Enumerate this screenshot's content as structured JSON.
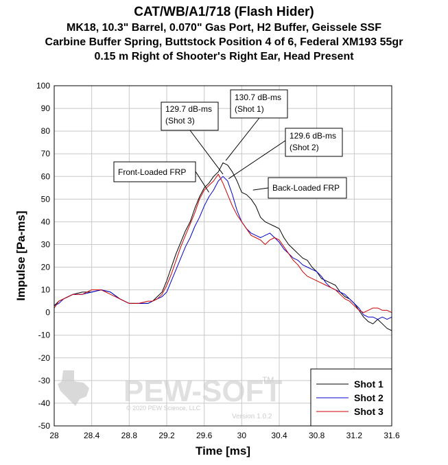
{
  "chart_data": {
    "type": "line",
    "title": "CAT/WB/A1/718 (Flash Hider)",
    "subtitle_lines": [
      "MK18, 10.3\" Barrel, 0.070\" Gas Port, H2 Buffer, Geissele SSF",
      "Carbine Buffer Spring, Buttstock Position 4 of 6, Federal XM193 55gr",
      "0.15 m Right of Shooter's Right Ear, Head Present"
    ],
    "xlabel": "Time [ms]",
    "ylabel": "Impulse [Pa-ms]",
    "xlim": [
      28,
      31.6
    ],
    "ylim": [
      -50,
      100
    ],
    "xticks": [
      "28",
      "28.4",
      "28.8",
      "29.2",
      "29.6",
      "30",
      "30.4",
      "30.8",
      "31.2",
      "31.6"
    ],
    "yticks": [
      "100",
      "90",
      "80",
      "70",
      "60",
      "50",
      "40",
      "30",
      "20",
      "10",
      "0",
      "-10",
      "-20",
      "-30",
      "-40",
      "-50"
    ],
    "grid": true,
    "legend_position": "bottom-right",
    "series": [
      {
        "name": "Shot 1",
        "color": "#000000",
        "x": [
          28.0,
          28.05,
          28.1,
          28.15,
          28.2,
          28.3,
          28.4,
          28.5,
          28.6,
          28.7,
          28.8,
          28.9,
          29.0,
          29.05,
          29.1,
          29.15,
          29.2,
          29.25,
          29.3,
          29.35,
          29.4,
          29.45,
          29.5,
          29.55,
          29.6,
          29.65,
          29.7,
          29.75,
          29.8,
          29.85,
          29.9,
          29.95,
          30.0,
          30.05,
          30.1,
          30.15,
          30.2,
          30.25,
          30.3,
          30.35,
          30.4,
          30.45,
          30.5,
          30.55,
          30.6,
          30.65,
          30.7,
          30.75,
          30.8,
          30.85,
          30.9,
          30.95,
          31.0,
          31.05,
          31.1,
          31.15,
          31.2,
          31.25,
          31.3,
          31.35,
          31.4,
          31.45,
          31.5,
          31.55,
          31.6
        ],
        "values": [
          3,
          5,
          6,
          7,
          8,
          9,
          9,
          10,
          9,
          6,
          4,
          4,
          4,
          5,
          7,
          9,
          14,
          20,
          26,
          31,
          36,
          40,
          46,
          51,
          55,
          57,
          60,
          62,
          66,
          65,
          62,
          58,
          53,
          52,
          50,
          47,
          42,
          40,
          39,
          38,
          37,
          33,
          30,
          28,
          26,
          24,
          23,
          20,
          18,
          15,
          14,
          13,
          12,
          9,
          7,
          6,
          4,
          1,
          -2,
          -4,
          -5,
          -3,
          -5,
          -7,
          -8
        ]
      },
      {
        "name": "Shot 2",
        "color": "#0000cc",
        "x": [
          28.0,
          28.05,
          28.1,
          28.15,
          28.2,
          28.3,
          28.4,
          28.5,
          28.6,
          28.7,
          28.8,
          28.9,
          29.0,
          29.05,
          29.1,
          29.15,
          29.2,
          29.25,
          29.3,
          29.35,
          29.4,
          29.45,
          29.5,
          29.55,
          29.6,
          29.65,
          29.7,
          29.75,
          29.8,
          29.85,
          29.9,
          29.95,
          30.0,
          30.05,
          30.1,
          30.15,
          30.2,
          30.25,
          30.3,
          30.35,
          30.4,
          30.45,
          30.5,
          30.55,
          30.6,
          30.65,
          30.7,
          30.75,
          30.8,
          30.85,
          30.9,
          30.95,
          31.0,
          31.05,
          31.1,
          31.15,
          31.2,
          31.25,
          31.3,
          31.35,
          31.4,
          31.45,
          31.5,
          31.55,
          31.6
        ],
        "values": [
          3,
          4,
          6,
          7,
          8,
          8,
          9,
          10,
          9,
          6,
          4,
          4,
          4,
          5,
          6,
          7,
          9,
          14,
          19,
          24,
          29,
          33,
          38,
          42,
          47,
          51,
          54,
          58,
          60,
          58,
          52,
          45,
          40,
          37,
          35,
          34,
          33,
          34,
          35,
          33,
          31,
          28,
          26,
          24,
          23,
          21,
          20,
          19,
          18,
          16,
          13,
          11,
          10,
          9,
          8,
          6,
          4,
          2,
          -1,
          -2,
          -2,
          -3,
          -2,
          -3,
          -2
        ]
      },
      {
        "name": "Shot 3",
        "color": "#cc0000",
        "x": [
          28.0,
          28.05,
          28.1,
          28.15,
          28.2,
          28.3,
          28.4,
          28.5,
          28.6,
          28.7,
          28.8,
          28.9,
          29.0,
          29.05,
          29.1,
          29.15,
          29.2,
          29.25,
          29.3,
          29.35,
          29.4,
          29.45,
          29.5,
          29.55,
          29.6,
          29.65,
          29.7,
          29.75,
          29.8,
          29.85,
          29.9,
          29.95,
          30.0,
          30.05,
          30.1,
          30.15,
          30.2,
          30.25,
          30.3,
          30.35,
          30.4,
          30.45,
          30.5,
          30.55,
          30.6,
          30.65,
          30.7,
          30.75,
          30.8,
          30.85,
          30.9,
          30.95,
          31.0,
          31.05,
          31.1,
          31.15,
          31.2,
          31.25,
          31.3,
          31.35,
          31.4,
          31.45,
          31.5,
          31.55,
          31.6
        ],
        "values": [
          2,
          5,
          6,
          7,
          8,
          8,
          10,
          10,
          8,
          6,
          4,
          4,
          5,
          5,
          6,
          8,
          12,
          17,
          23,
          29,
          34,
          39,
          44,
          50,
          54,
          56,
          58,
          61,
          57,
          52,
          47,
          43,
          40,
          37,
          34,
          33,
          32,
          30,
          32,
          33,
          32,
          29,
          26,
          23,
          21,
          18,
          16,
          15,
          14,
          13,
          12,
          11,
          10,
          8,
          6,
          5,
          3,
          1,
          0,
          1,
          2,
          2,
          1,
          1,
          0
        ]
      }
    ],
    "annotations": [
      {
        "lines": [
          "129.7 dB-ms",
          "(Shot 3)"
        ],
        "target": [
          29.8,
          61
        ]
      },
      {
        "lines": [
          "130.7 dB-ms",
          "(Shot 1)"
        ],
        "target": [
          29.83,
          67
        ]
      },
      {
        "lines": [
          "129.6 dB-ms",
          "(Shot 2)"
        ],
        "target": [
          29.86,
          59
        ]
      },
      {
        "lines": [
          "Front-Loaded FRP"
        ],
        "target": [
          29.65,
          53
        ]
      },
      {
        "lines": [
          "Back-Loaded FRP"
        ],
        "target": [
          30.12,
          54
        ]
      }
    ]
  },
  "watermark": {
    "brand": "PEW-SOFT",
    "trademark": "TM",
    "copyright": "© 2020 PEW Science, LLC",
    "version": "Version 1.0.2"
  }
}
